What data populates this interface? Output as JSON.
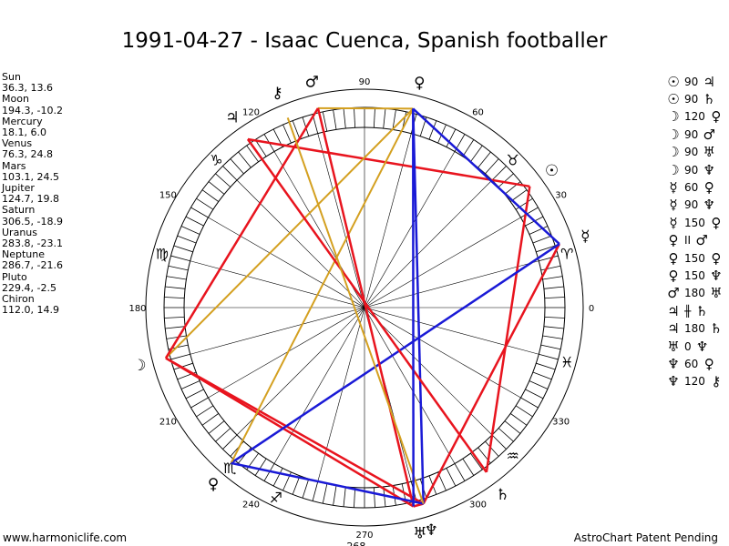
{
  "title": "1991-04-27 - Isaac Cuenca, Spanish footballer",
  "bodies": [
    {
      "name": "Sun",
      "coords": "36.3, 13.6"
    },
    {
      "name": "Moon",
      "coords": "194.3, -10.2"
    },
    {
      "name": "Mercury",
      "coords": "18.1, 6.0"
    },
    {
      "name": "Venus",
      "coords": "76.3, 24.8"
    },
    {
      "name": "Mars",
      "coords": "103.1, 24.5"
    },
    {
      "name": "Jupiter",
      "coords": "124.7, 19.8"
    },
    {
      "name": "Saturn",
      "coords": "306.5, -18.9"
    },
    {
      "name": "Uranus",
      "coords": "283.8, -23.1"
    },
    {
      "name": "Neptune",
      "coords": "286.7, -21.6"
    },
    {
      "name": "Pluto",
      "coords": "229.4, -2.5"
    },
    {
      "name": "Chiron",
      "coords": "112.0, 14.9"
    }
  ],
  "aspects": [
    {
      "g1": "☉",
      "value": "90",
      "g2": "♃"
    },
    {
      "g1": "☉",
      "value": "90",
      "g2": "♄"
    },
    {
      "g1": "☽",
      "value": "120",
      "g2": "♀"
    },
    {
      "g1": "☽",
      "value": "90",
      "g2": "♂"
    },
    {
      "g1": "☽",
      "value": "90",
      "g2": "♅"
    },
    {
      "g1": "☽",
      "value": "90",
      "g2": "♆"
    },
    {
      "g1": "☿",
      "value": "60",
      "g2": "♀"
    },
    {
      "g1": "☿",
      "value": "90",
      "g2": "♆"
    },
    {
      "g1": "☿",
      "value": "150",
      "g2": "♀"
    },
    {
      "g1": "♀",
      "value": "II",
      "g2": "♂"
    },
    {
      "g1": "♀",
      "value": "150",
      "g2": "♀"
    },
    {
      "g1": "♀",
      "value": "150",
      "g2": "♆"
    },
    {
      "g1": "♂",
      "value": "180",
      "g2": "♅"
    },
    {
      "g1": "♃",
      "value": "╫",
      "g2": "♄"
    },
    {
      "g1": "♃",
      "value": "180",
      "g2": "♄"
    },
    {
      "g1": "♅",
      "value": "0",
      "g2": "♆"
    },
    {
      "g1": "♆",
      "value": "60",
      "g2": "♀"
    },
    {
      "g1": "♆",
      "value": "120",
      "g2": "⚷"
    }
  ],
  "wheel": {
    "degree_labels": [
      "0",
      "30",
      "60",
      "90",
      "120",
      "150",
      "180",
      "210",
      "240",
      "270",
      "300",
      "330"
    ],
    "bottom_label": "268",
    "colors": {
      "hard": "#e8141e",
      "soft": "#1a1ad6",
      "minor": "#d4a020"
    },
    "planets": [
      {
        "glyph": "☉",
        "lon": 36.3
      },
      {
        "glyph": "☽",
        "lon": 194.3
      },
      {
        "glyph": "☿",
        "lon": 18.1
      },
      {
        "glyph": "♀",
        "lon": 76.3
      },
      {
        "glyph": "♂",
        "lon": 103.1
      },
      {
        "glyph": "♃",
        "lon": 124.7
      },
      {
        "glyph": "♄",
        "lon": 306.5
      },
      {
        "glyph": "♅",
        "lon": 283.8
      },
      {
        "glyph": "♆",
        "lon": 286.7
      },
      {
        "glyph": "♀",
        "lon": 229.4
      },
      {
        "glyph": "⚷",
        "lon": 112.0
      }
    ],
    "signs": [
      {
        "glyph": "♓",
        "lon": 345
      },
      {
        "glyph": "♑",
        "lon": 135
      },
      {
        "glyph": "♏",
        "lon": 230
      },
      {
        "glyph": "♈",
        "lon": 15
      },
      {
        "glyph": "♉",
        "lon": 45
      },
      {
        "glyph": "♍",
        "lon": 165
      },
      {
        "glyph": "♐",
        "lon": 245
      },
      {
        "glyph": "♒",
        "lon": 315
      }
    ],
    "aspect_lines": [
      {
        "a": 36.3,
        "b": 124.7,
        "kind": "hard"
      },
      {
        "a": 36.3,
        "b": 306.5,
        "kind": "hard"
      },
      {
        "a": 194.3,
        "b": 76.3,
        "kind": "minor"
      },
      {
        "a": 194.3,
        "b": 103.1,
        "kind": "hard"
      },
      {
        "a": 194.3,
        "b": 283.8,
        "kind": "hard"
      },
      {
        "a": 194.3,
        "b": 286.7,
        "kind": "hard"
      },
      {
        "a": 18.1,
        "b": 76.3,
        "kind": "soft"
      },
      {
        "a": 18.1,
        "b": 286.7,
        "kind": "hard"
      },
      {
        "a": 18.1,
        "b": 229.4,
        "kind": "soft"
      },
      {
        "a": 76.3,
        "b": 103.1,
        "kind": "minor"
      },
      {
        "a": 76.3,
        "b": 229.4,
        "kind": "minor"
      },
      {
        "a": 76.3,
        "b": 286.7,
        "kind": "soft"
      },
      {
        "a": 103.1,
        "b": 283.8,
        "kind": "hard"
      },
      {
        "a": 124.7,
        "b": 306.5,
        "kind": "hard"
      },
      {
        "a": 283.8,
        "b": 286.7,
        "kind": "hard"
      },
      {
        "a": 286.7,
        "b": 229.4,
        "kind": "soft"
      },
      {
        "a": 286.7,
        "b": 112.0,
        "kind": "minor"
      },
      {
        "a": 76.3,
        "b": 283.8,
        "kind": "soft"
      }
    ]
  },
  "footer": {
    "left": "www.harmoniclife.com",
    "right": "AstroChart Patent Pending"
  }
}
